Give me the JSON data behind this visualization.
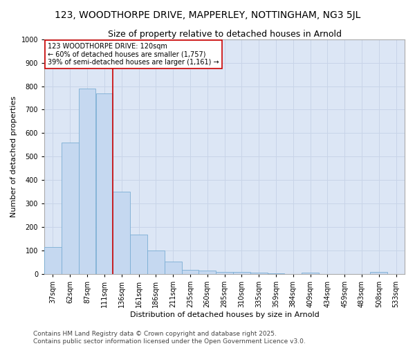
{
  "title": "123, WOODTHORPE DRIVE, MAPPERLEY, NOTTINGHAM, NG3 5JL",
  "subtitle": "Size of property relative to detached houses in Arnold",
  "xlabel": "Distribution of detached houses by size in Arnold",
  "ylabel": "Number of detached properties",
  "categories": [
    "37sqm",
    "62sqm",
    "87sqm",
    "111sqm",
    "136sqm",
    "161sqm",
    "186sqm",
    "211sqm",
    "235sqm",
    "260sqm",
    "285sqm",
    "310sqm",
    "335sqm",
    "359sqm",
    "384sqm",
    "409sqm",
    "434sqm",
    "459sqm",
    "483sqm",
    "508sqm",
    "533sqm"
  ],
  "values": [
    115,
    560,
    790,
    770,
    350,
    168,
    100,
    52,
    18,
    14,
    10,
    10,
    7,
    3,
    0,
    5,
    0,
    0,
    0,
    8,
    0
  ],
  "bar_color": "#c5d8f0",
  "bar_edge_color": "#7aadd4",
  "grid_color": "#c8d4e8",
  "plot_bg_color": "#dce6f5",
  "fig_bg_color": "#ffffff",
  "vline_color": "#cc0000",
  "vline_x_index": 3,
  "annotation_text": "123 WOODTHORPE DRIVE: 120sqm\n← 60% of detached houses are smaller (1,757)\n39% of semi-detached houses are larger (1,161) →",
  "annotation_box_facecolor": "#ffffff",
  "annotation_box_edgecolor": "#cc0000",
  "ylim": [
    0,
    1000
  ],
  "yticks": [
    0,
    100,
    200,
    300,
    400,
    500,
    600,
    700,
    800,
    900,
    1000
  ],
  "footer": "Contains HM Land Registry data © Crown copyright and database right 2025.\nContains public sector information licensed under the Open Government Licence v3.0.",
  "title_fontsize": 10,
  "subtitle_fontsize": 9,
  "xlabel_fontsize": 8,
  "ylabel_fontsize": 8,
  "tick_fontsize": 7,
  "annotation_fontsize": 7,
  "footer_fontsize": 6.5
}
